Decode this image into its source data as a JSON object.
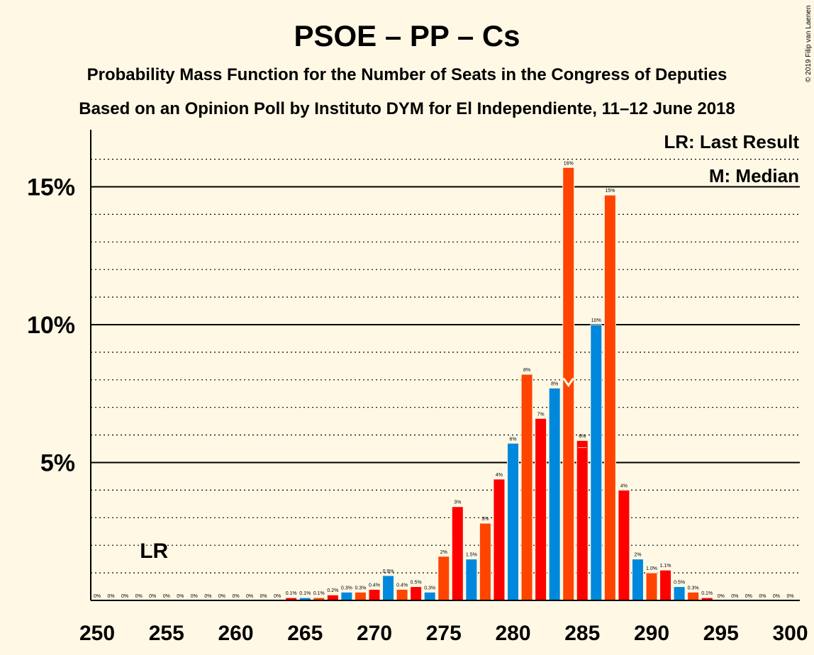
{
  "copyright": "© 2019 Filip van Laenen",
  "legend": {
    "lr": "LR: Last Result",
    "median": "M: Median"
  },
  "colors": {
    "background": "#fff8e5",
    "psoe": "#ff0000",
    "pp": "#0088dd",
    "cs": "#ff4400",
    "cs_light": "#ff5500"
  },
  "chart_data": {
    "type": "bar",
    "title": "PSOE – PP – Cs",
    "subtitle": "Probability Mass Function for the Number of Seats in the Congress of Deputies",
    "subtitle2": "Based on an Opinion Poll by Instituto DYM for El Independiente, 11–12 June 2018",
    "xlabel": "",
    "ylabel": "",
    "xlim": [
      250,
      300
    ],
    "ylim": [
      0,
      17
    ],
    "x_ticks": [
      "250",
      "255",
      "260",
      "265",
      "270",
      "275",
      "280",
      "285",
      "290",
      "295",
      "300"
    ],
    "y_ticks": [
      {
        "value": 5,
        "label": "5%"
      },
      {
        "value": 10,
        "label": "10%"
      },
      {
        "value": 15,
        "label": "15%"
      }
    ],
    "last_result_label": "LR",
    "last_result_seat": 254,
    "median_seat": 284,
    "bars": [
      {
        "seat": 250,
        "value": 0,
        "label": "0%"
      },
      {
        "seat": 251,
        "value": 0,
        "label": "0%"
      },
      {
        "seat": 252,
        "value": 0,
        "label": "0%"
      },
      {
        "seat": 253,
        "value": 0,
        "label": "0%"
      },
      {
        "seat": 254,
        "value": 0,
        "label": "0%"
      },
      {
        "seat": 255,
        "value": 0,
        "label": "0%"
      },
      {
        "seat": 256,
        "value": 0,
        "label": "0%"
      },
      {
        "seat": 257,
        "value": 0,
        "label": "0%"
      },
      {
        "seat": 258,
        "value": 0,
        "label": "0%"
      },
      {
        "seat": 259,
        "value": 0,
        "label": "0%"
      },
      {
        "seat": 260,
        "value": 0,
        "label": "0%"
      },
      {
        "seat": 261,
        "value": 0,
        "label": "0%"
      },
      {
        "seat": 262,
        "value": 0,
        "label": "0%"
      },
      {
        "seat": 263,
        "value": 0,
        "label": "0%"
      },
      {
        "seat": 264,
        "value": 0.1,
        "label": "0.1%",
        "party": "psoe"
      },
      {
        "seat": 265,
        "value": 0.1,
        "label": "0.1%",
        "party": "pp"
      },
      {
        "seat": 266,
        "value": 0.1,
        "label": "0.1%",
        "party": "cs"
      },
      {
        "seat": 267,
        "value": 0.2,
        "label": "0.2%",
        "party": "psoe"
      },
      {
        "seat": 268,
        "value": 0.3,
        "label": "0.3%",
        "party": "pp"
      },
      {
        "seat": 269,
        "value": 0.3,
        "label": "0.3%",
        "party": "cs"
      },
      {
        "seat": 270,
        "value": 0.4,
        "label": "0.4%",
        "party": "psoe"
      },
      {
        "seat": 271,
        "value": 0.9,
        "label": "0.9%",
        "party": "pp"
      },
      {
        "seat": 272,
        "value": 0.4,
        "label": "0.4%",
        "party": "cs"
      },
      {
        "seat": 273,
        "value": 0.5,
        "label": "0.5%",
        "party": "psoe"
      },
      {
        "seat": 274,
        "value": 0.3,
        "label": "0.3%",
        "party": "pp"
      },
      {
        "seat": 275,
        "value": 1.6,
        "label": "2%",
        "party": "cs"
      },
      {
        "seat": 276,
        "value": 3.4,
        "label": "3%",
        "party": "psoe"
      },
      {
        "seat": 277,
        "value": 1.5,
        "label": "1.5%",
        "party": "pp"
      },
      {
        "seat": 278,
        "value": 2.8,
        "label": "3%",
        "party": "cs"
      },
      {
        "seat": 279,
        "value": 4.4,
        "label": "4%",
        "party": "psoe"
      },
      {
        "seat": 280,
        "value": 5.7,
        "label": "6%",
        "party": "pp"
      },
      {
        "seat": 281,
        "value": 8.2,
        "label": "8%",
        "party": "cs"
      },
      {
        "seat": 282,
        "value": 6.6,
        "label": "7%",
        "party": "psoe"
      },
      {
        "seat": 283,
        "value": 7.7,
        "label": "8%",
        "party": "pp"
      },
      {
        "seat": 284,
        "value": 15.7,
        "label": "16%",
        "party": "cs"
      },
      {
        "seat": 285,
        "value": 5.8,
        "label": "6%",
        "party": "psoe"
      },
      {
        "seat": 286,
        "value": 10.0,
        "label": "10%",
        "party": "pp"
      },
      {
        "seat": 287,
        "value": 14.7,
        "label": "15%",
        "party": "cs"
      },
      {
        "seat": 288,
        "value": 4.0,
        "label": "4%",
        "party": "psoe"
      },
      {
        "seat": 289,
        "value": 1.5,
        "label": "2%",
        "party": "pp"
      },
      {
        "seat": 290,
        "value": 1.0,
        "label": "1.0%",
        "party": "cs"
      },
      {
        "seat": 291,
        "value": 1.1,
        "label": "1.1%",
        "party": "psoe"
      },
      {
        "seat": 292,
        "value": 0.5,
        "label": "0.5%",
        "party": "pp"
      },
      {
        "seat": 293,
        "value": 0.3,
        "label": "0.3%",
        "party": "cs"
      },
      {
        "seat": 294,
        "value": 0.1,
        "label": "0.1%",
        "party": "psoe"
      },
      {
        "seat": 295,
        "value": 0,
        "label": "0%"
      },
      {
        "seat": 296,
        "value": 0,
        "label": "0%"
      },
      {
        "seat": 297,
        "value": 0,
        "label": "0%"
      },
      {
        "seat": 298,
        "value": 0,
        "label": "0%"
      },
      {
        "seat": 299,
        "value": 0,
        "label": "0%"
      },
      {
        "seat": 300,
        "value": 0,
        "label": "0%"
      }
    ]
  }
}
